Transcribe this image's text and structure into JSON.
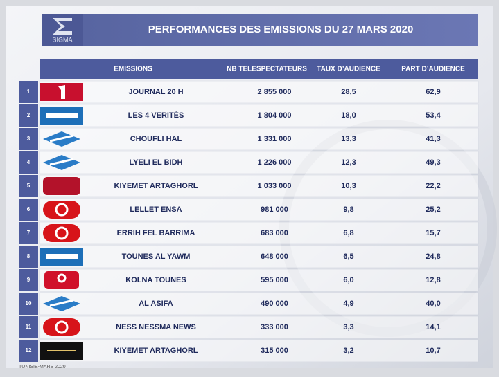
{
  "header": {
    "brand": "SIGMA",
    "title": "PERFORMANCES DES EMISSIONS DU 27 MARS 2020"
  },
  "table": {
    "columns": [
      "EMISSIONS",
      "NB TELESPECTATEURS",
      "TAUX D’AUDIENCE",
      "PART D’AUDIENCE"
    ],
    "rows": [
      [
        "1",
        "JOURNAL 20 H",
        "2 855 000",
        "28,5",
        "62,9"
      ],
      [
        "2",
        "LES 4 VERITÉS",
        "1 804 000",
        "18,0",
        "53,4"
      ],
      [
        "3",
        "CHOUFLI HAL",
        "1 331 000",
        "13,3",
        "41,3"
      ],
      [
        "4",
        "LYELI EL BIDH",
        "1 226 000",
        "12,3",
        "49,3"
      ],
      [
        "5",
        "KIYEMET ARTAGHORL",
        "1 033 000",
        "10,3",
        "22,2"
      ],
      [
        "6",
        "LELLET ENSA",
        "981 000",
        "9,8",
        "25,2"
      ],
      [
        "7",
        "ERRIH FEL BARRIMA",
        "683 000",
        "6,8",
        "15,7"
      ],
      [
        "8",
        "TOUNES AL YAWM",
        "648 000",
        "6,5",
        "24,8"
      ],
      [
        "9",
        "KOLNA TOUNES",
        "595 000",
        "6,0",
        "12,8"
      ],
      [
        "10",
        "AL ASIFA",
        "490 000",
        "4,9",
        "40,0"
      ],
      [
        "11",
        "NESS NESSMA NEWS",
        "333 000",
        "3,3",
        "14,1"
      ],
      [
        "12",
        "KIYEMET ARTAGHORL",
        "315 000",
        "3,2",
        "10,7"
      ]
    ]
  },
  "footer": "TUNISIE-MARS 2020"
}
